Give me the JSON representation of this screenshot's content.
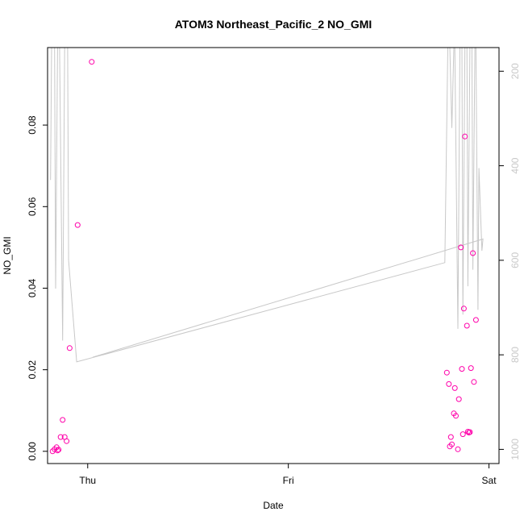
{
  "chart_data": {
    "type": "scatter",
    "title": "ATOM3 Northeast_Pacific_2 NO_GMI",
    "xlabel": "Date",
    "ylabel": "NO_GMI",
    "x_ticks": [
      {
        "label": "Thu",
        "value": 0
      },
      {
        "label": "Fri",
        "value": 1
      },
      {
        "label": "Sat",
        "value": 2
      }
    ],
    "xlim": [
      -0.2,
      2.05
    ],
    "ylim": [
      -0.003,
      0.099
    ],
    "y_ticks": [
      "0.00",
      "0.02",
      "0.04",
      "0.06",
      "0.08"
    ],
    "y_tick_values": [
      0,
      0.02,
      0.04,
      0.06,
      0.08
    ],
    "secondary_axis": {
      "reversed": true,
      "lim": [
        1030,
        150
      ],
      "ticks": [
        "200",
        "400",
        "600",
        "800",
        "1000"
      ],
      "tick_values": [
        200,
        400,
        600,
        800,
        1000
      ]
    },
    "series": [
      {
        "kind": "points",
        "color": "#ff00aa",
        "points": [
          [
            -0.175,
            0.0
          ],
          [
            -0.165,
            0.0005
          ],
          [
            -0.155,
            0.001
          ],
          [
            -0.15,
            0.0002
          ],
          [
            -0.145,
            0.0004
          ],
          [
            -0.135,
            0.0035
          ],
          [
            -0.125,
            0.0077
          ],
          [
            -0.115,
            0.0035
          ],
          [
            -0.105,
            0.0025
          ],
          [
            -0.09,
            0.0253
          ],
          [
            -0.05,
            0.0555
          ],
          [
            0.02,
            0.0955
          ],
          [
            1.79,
            0.0193
          ],
          [
            1.8,
            0.0165
          ],
          [
            1.805,
            0.0012
          ],
          [
            1.81,
            0.0035
          ],
          [
            1.815,
            0.0017
          ],
          [
            1.825,
            0.0093
          ],
          [
            1.83,
            0.0155
          ],
          [
            1.835,
            0.0087
          ],
          [
            1.845,
            0.0005
          ],
          [
            1.85,
            0.0128
          ],
          [
            1.86,
            0.05
          ],
          [
            1.865,
            0.0202
          ],
          [
            1.87,
            0.0042
          ],
          [
            1.875,
            0.035
          ],
          [
            1.88,
            0.0772
          ],
          [
            1.89,
            0.0308
          ],
          [
            1.895,
            0.0048
          ],
          [
            1.9,
            0.0046
          ],
          [
            1.905,
            0.0047
          ],
          [
            1.91,
            0.0204
          ],
          [
            1.92,
            0.0486
          ],
          [
            1.925,
            0.017
          ],
          [
            1.935,
            0.0322
          ]
        ]
      },
      {
        "kind": "line",
        "color": "#c8c8c8",
        "axis": "secondary",
        "points": [
          [
            -0.185,
            430
          ],
          [
            -0.18,
            150
          ],
          [
            -0.175,
            150
          ],
          [
            -0.165,
            150
          ],
          [
            -0.16,
            660
          ],
          [
            -0.15,
            150
          ],
          [
            -0.14,
            150
          ],
          [
            -0.125,
            770
          ],
          [
            -0.115,
            150
          ],
          [
            -0.1,
            150
          ],
          [
            -0.095,
            600
          ],
          [
            -0.055,
            815
          ],
          [
            1.78,
            605
          ],
          [
            1.795,
            150
          ],
          [
            1.805,
            150
          ],
          [
            1.815,
            320
          ],
          [
            1.825,
            150
          ],
          [
            1.83,
            150
          ],
          [
            1.845,
            745
          ],
          [
            1.855,
            150
          ],
          [
            1.865,
            150
          ],
          [
            1.87,
            715
          ],
          [
            1.88,
            150
          ],
          [
            1.89,
            150
          ],
          [
            1.895,
            655
          ],
          [
            1.905,
            150
          ],
          [
            1.915,
            150
          ],
          [
            1.92,
            620
          ],
          [
            1.93,
            150
          ],
          [
            1.935,
            150
          ],
          [
            1.945,
            705
          ],
          [
            1.95,
            405
          ],
          [
            1.965,
            580
          ],
          [
            1.97,
            555
          ],
          [
            0.025,
            805
          ]
        ]
      }
    ]
  }
}
